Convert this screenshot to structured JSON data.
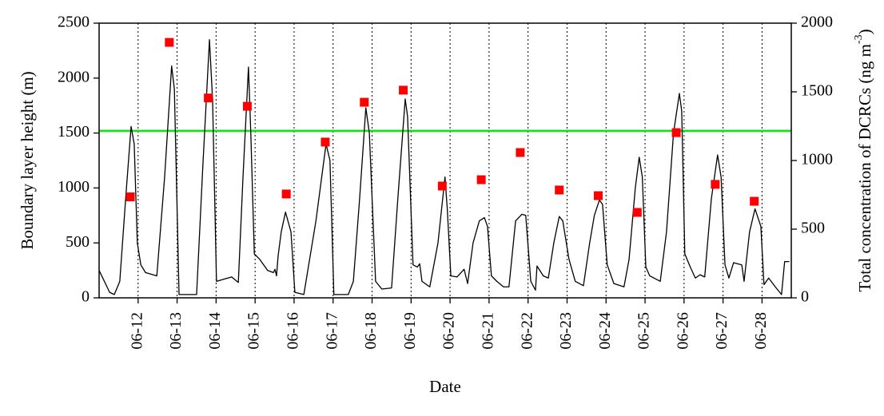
{
  "chart_data": {
    "type": "line",
    "xlabel": "Date",
    "ylabel": "Boundary layer height (m)",
    "y2label": {
      "text": "Total concentration of DCRCs (ng m",
      "sup": "-3",
      "end": ")"
    },
    "xlim": [
      11,
      28.75
    ],
    "xticks": [
      {
        "value": 12,
        "label": "06-12"
      },
      {
        "value": 13,
        "label": "06-13"
      },
      {
        "value": 14,
        "label": "06-14"
      },
      {
        "value": 15,
        "label": "06-15"
      },
      {
        "value": 16,
        "label": "06-16"
      },
      {
        "value": 17,
        "label": "06-17"
      },
      {
        "value": 18,
        "label": "06-18"
      },
      {
        "value": 19,
        "label": "06-19"
      },
      {
        "value": 20,
        "label": "06-20"
      },
      {
        "value": 21,
        "label": "06-21"
      },
      {
        "value": 22,
        "label": "06-22"
      },
      {
        "value": 23,
        "label": "06-23"
      },
      {
        "value": 24,
        "label": "06-24"
      },
      {
        "value": 25,
        "label": "06-25"
      },
      {
        "value": 26,
        "label": "06-26"
      },
      {
        "value": 27,
        "label": "06-27"
      },
      {
        "value": 28,
        "label": "06-28"
      }
    ],
    "ylim": [
      0,
      2500
    ],
    "yticks": [
      0,
      500,
      1000,
      1500,
      2000,
      2500
    ],
    "y2lim": [
      0,
      2000
    ],
    "y2ticks": [
      0,
      500,
      1000,
      1500,
      2000
    ],
    "xgrid": "dotted",
    "hline": {
      "value": 1520,
      "color": "#00ee00"
    },
    "series": [
      {
        "type": "line",
        "color": "#000000",
        "x": [
          11.0,
          11.27,
          11.39,
          11.53,
          11.68,
          11.82,
          11.9,
          11.98,
          12.07,
          12.19,
          12.48,
          12.68,
          12.86,
          12.93,
          13.05,
          13.5,
          13.66,
          13.83,
          13.91,
          14.01,
          14.2,
          14.4,
          14.57,
          14.69,
          14.83,
          14.89,
          14.98,
          15.12,
          15.32,
          15.47,
          15.51,
          15.55,
          15.59,
          15.67,
          15.78,
          15.92,
          16.02,
          16.25,
          16.56,
          16.82,
          16.92,
          17.02,
          17.39,
          17.52,
          17.68,
          17.84,
          17.93,
          18.09,
          18.25,
          18.5,
          18.66,
          18.85,
          18.91,
          19.05,
          19.16,
          19.22,
          19.28,
          19.48,
          19.69,
          19.87,
          19.93,
          20.02,
          20.18,
          20.36,
          20.45,
          20.59,
          20.75,
          20.88,
          20.96,
          21.06,
          21.2,
          21.37,
          21.51,
          21.68,
          21.84,
          21.94,
          22.07,
          22.19,
          22.23,
          22.39,
          22.52,
          22.66,
          22.8,
          22.89,
          23.05,
          23.21,
          23.42,
          23.58,
          23.7,
          23.83,
          23.91,
          24.03,
          24.2,
          24.46,
          24.59,
          24.75,
          24.85,
          24.93,
          25.02,
          25.12,
          25.39,
          25.55,
          25.73,
          25.88,
          25.94,
          26.02,
          26.16,
          26.29,
          26.41,
          26.53,
          26.7,
          26.86,
          26.95,
          27.05,
          27.15,
          27.27,
          27.48,
          27.54,
          27.68,
          27.82,
          27.97,
          28.05,
          28.17,
          28.34,
          28.5,
          28.58,
          28.7
        ],
        "values": [
          250,
          50,
          30,
          150,
          900,
          1560,
          1400,
          500,
          300,
          230,
          200,
          1100,
          2110,
          1900,
          30,
          30,
          1200,
          2350,
          1800,
          150,
          170,
          190,
          140,
          1100,
          2100,
          1500,
          400,
          350,
          250,
          230,
          260,
          200,
          380,
          600,
          780,
          600,
          50,
          30,
          700,
          1400,
          1250,
          30,
          30,
          150,
          900,
          1730,
          1500,
          150,
          80,
          90,
          900,
          1810,
          1650,
          300,
          280,
          310,
          150,
          100,
          500,
          1100,
          800,
          200,
          190,
          260,
          130,
          500,
          700,
          730,
          650,
          200,
          150,
          100,
          100,
          700,
          760,
          750,
          150,
          70,
          290,
          200,
          180,
          500,
          740,
          700,
          350,
          150,
          110,
          500,
          750,
          890,
          850,
          300,
          130,
          100,
          350,
          1000,
          1280,
          1100,
          280,
          200,
          150,
          600,
          1500,
          1860,
          1700,
          400,
          280,
          180,
          210,
          190,
          900,
          1300,
          1100,
          300,
          180,
          320,
          300,
          150,
          600,
          810,
          650,
          120,
          180,
          100,
          30,
          330,
          330
        ]
      },
      {
        "type": "scatter",
        "color": "#ff0000",
        "axis": "y2",
        "x": [
          11.8,
          12.8,
          13.8,
          14.8,
          15.8,
          16.8,
          17.8,
          18.8,
          19.8,
          20.8,
          21.8,
          22.8,
          23.8,
          24.8,
          25.8,
          26.8,
          27.8
        ],
        "values": [
          735,
          1860,
          1455,
          1395,
          756,
          1134,
          1424,
          1512,
          814,
          860,
          1058,
          785,
          744,
          622,
          1203,
          826,
          703
        ]
      }
    ]
  }
}
